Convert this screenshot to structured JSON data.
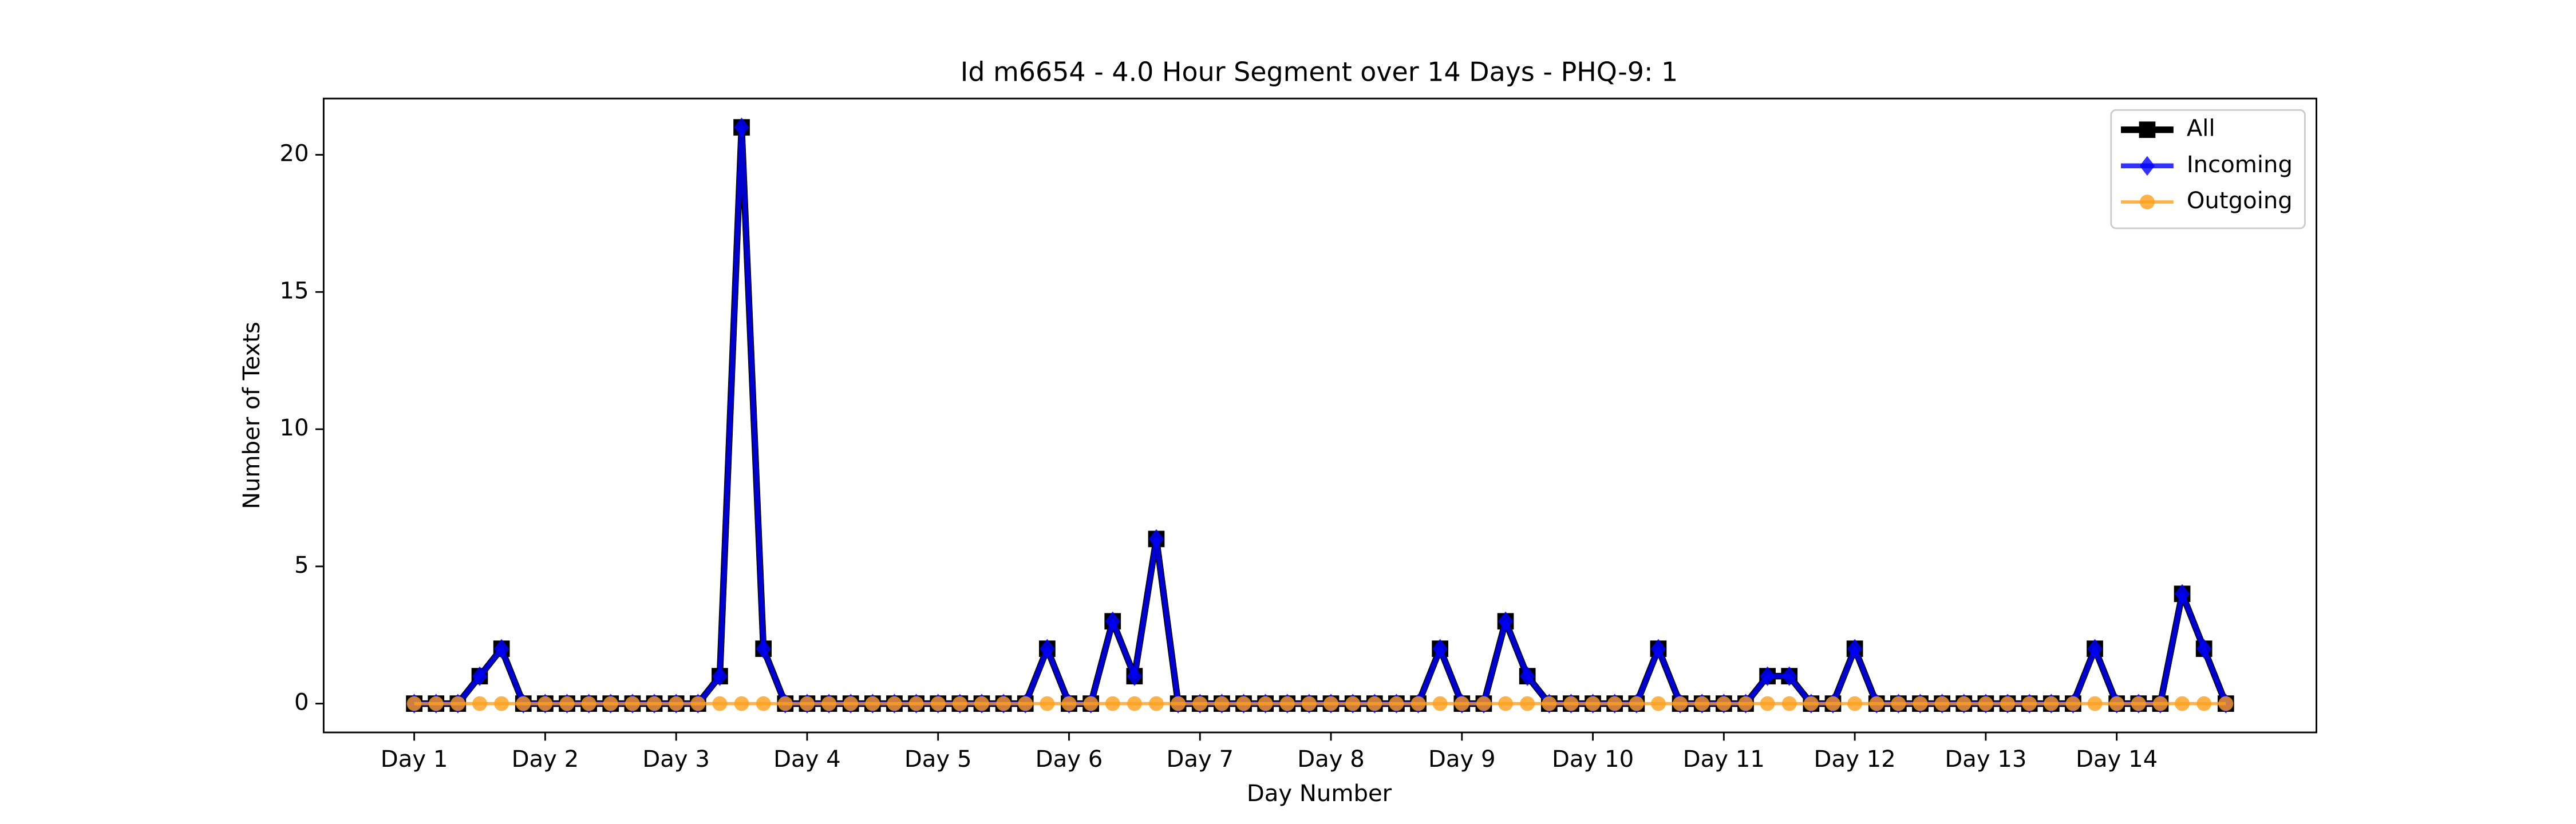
{
  "chart_data": {
    "type": "line",
    "title": "Id m6654 - 4.0 Hour Segment over 14 Days - PHQ-9: 1",
    "xlabel": "Day Number",
    "ylabel": "Number of Texts",
    "x": [
      0,
      1,
      2,
      3,
      4,
      5,
      6,
      7,
      8,
      9,
      10,
      11,
      12,
      13,
      14,
      15,
      16,
      17,
      18,
      19,
      20,
      21,
      22,
      23,
      24,
      25,
      26,
      27,
      28,
      29,
      30,
      31,
      32,
      33,
      34,
      35,
      36,
      37,
      38,
      39,
      40,
      41,
      42,
      43,
      44,
      45,
      46,
      47,
      48,
      49,
      50,
      51,
      52,
      53,
      54,
      55,
      56,
      57,
      58,
      59,
      60,
      61,
      62,
      63,
      64,
      65,
      66,
      67,
      68,
      69,
      70,
      71,
      72,
      73,
      74,
      75,
      76,
      77,
      78,
      79,
      80,
      81,
      82,
      83
    ],
    "series": [
      {
        "name": "All",
        "color": "#000000",
        "marker": "square",
        "values": [
          0,
          0,
          0,
          1,
          2,
          0,
          0,
          0,
          0,
          0,
          0,
          0,
          0,
          0,
          1,
          21,
          2,
          0,
          0,
          0,
          0,
          0,
          0,
          0,
          0,
          0,
          0,
          0,
          0,
          2,
          0,
          0,
          3,
          1,
          6,
          0,
          0,
          0,
          0,
          0,
          0,
          0,
          0,
          0,
          0,
          0,
          0,
          2,
          0,
          0,
          3,
          1,
          0,
          0,
          0,
          0,
          0,
          2,
          0,
          0,
          0,
          0,
          1,
          1,
          0,
          0,
          2,
          0,
          0,
          0,
          0,
          0,
          0,
          0,
          0,
          0,
          0,
          2,
          0,
          0,
          0,
          4,
          2,
          0
        ]
      },
      {
        "name": "Incoming",
        "color": "#0000ff",
        "marker": "diamond",
        "values": [
          0,
          0,
          0,
          1,
          2,
          0,
          0,
          0,
          0,
          0,
          0,
          0,
          0,
          0,
          1,
          21,
          2,
          0,
          0,
          0,
          0,
          0,
          0,
          0,
          0,
          0,
          0,
          0,
          0,
          2,
          0,
          0,
          3,
          1,
          6,
          0,
          0,
          0,
          0,
          0,
          0,
          0,
          0,
          0,
          0,
          0,
          0,
          2,
          0,
          0,
          3,
          1,
          0,
          0,
          0,
          0,
          0,
          2,
          0,
          0,
          0,
          0,
          1,
          1,
          0,
          0,
          2,
          0,
          0,
          0,
          0,
          0,
          0,
          0,
          0,
          0,
          0,
          2,
          0,
          0,
          0,
          4,
          2,
          0
        ]
      },
      {
        "name": "Outgoing",
        "color": "#ff9f1c",
        "marker": "circle",
        "values": [
          0,
          0,
          0,
          0,
          0,
          0,
          0,
          0,
          0,
          0,
          0,
          0,
          0,
          0,
          0,
          0,
          0,
          0,
          0,
          0,
          0,
          0,
          0,
          0,
          0,
          0,
          0,
          0,
          0,
          0,
          0,
          0,
          0,
          0,
          0,
          0,
          0,
          0,
          0,
          0,
          0,
          0,
          0,
          0,
          0,
          0,
          0,
          0,
          0,
          0,
          0,
          0,
          0,
          0,
          0,
          0,
          0,
          0,
          0,
          0,
          0,
          0,
          0,
          0,
          0,
          0,
          0,
          0,
          0,
          0,
          0,
          0,
          0,
          0,
          0,
          0,
          0,
          0,
          0,
          0,
          0,
          0,
          0,
          0
        ]
      }
    ],
    "xlim": [
      -4.15,
      87.15
    ],
    "xticks": [
      {
        "value": 0,
        "label": "Day 1"
      },
      {
        "value": 6,
        "label": "Day 2"
      },
      {
        "value": 12,
        "label": "Day 3"
      },
      {
        "value": 18,
        "label": "Day 4"
      },
      {
        "value": 24,
        "label": "Day 5"
      },
      {
        "value": 30,
        "label": "Day 6"
      },
      {
        "value": 36,
        "label": "Day 7"
      },
      {
        "value": 42,
        "label": "Day 8"
      },
      {
        "value": 48,
        "label": "Day 9"
      },
      {
        "value": 54,
        "label": "Day 10"
      },
      {
        "value": 60,
        "label": "Day 11"
      },
      {
        "value": 66,
        "label": "Day 12"
      },
      {
        "value": 72,
        "label": "Day 13"
      },
      {
        "value": 78,
        "label": "Day 14"
      }
    ],
    "ylim": [
      -1.05,
      22.05
    ],
    "yticks": [
      0,
      5,
      10,
      15,
      20
    ],
    "grid": false,
    "legend": "upper right"
  }
}
